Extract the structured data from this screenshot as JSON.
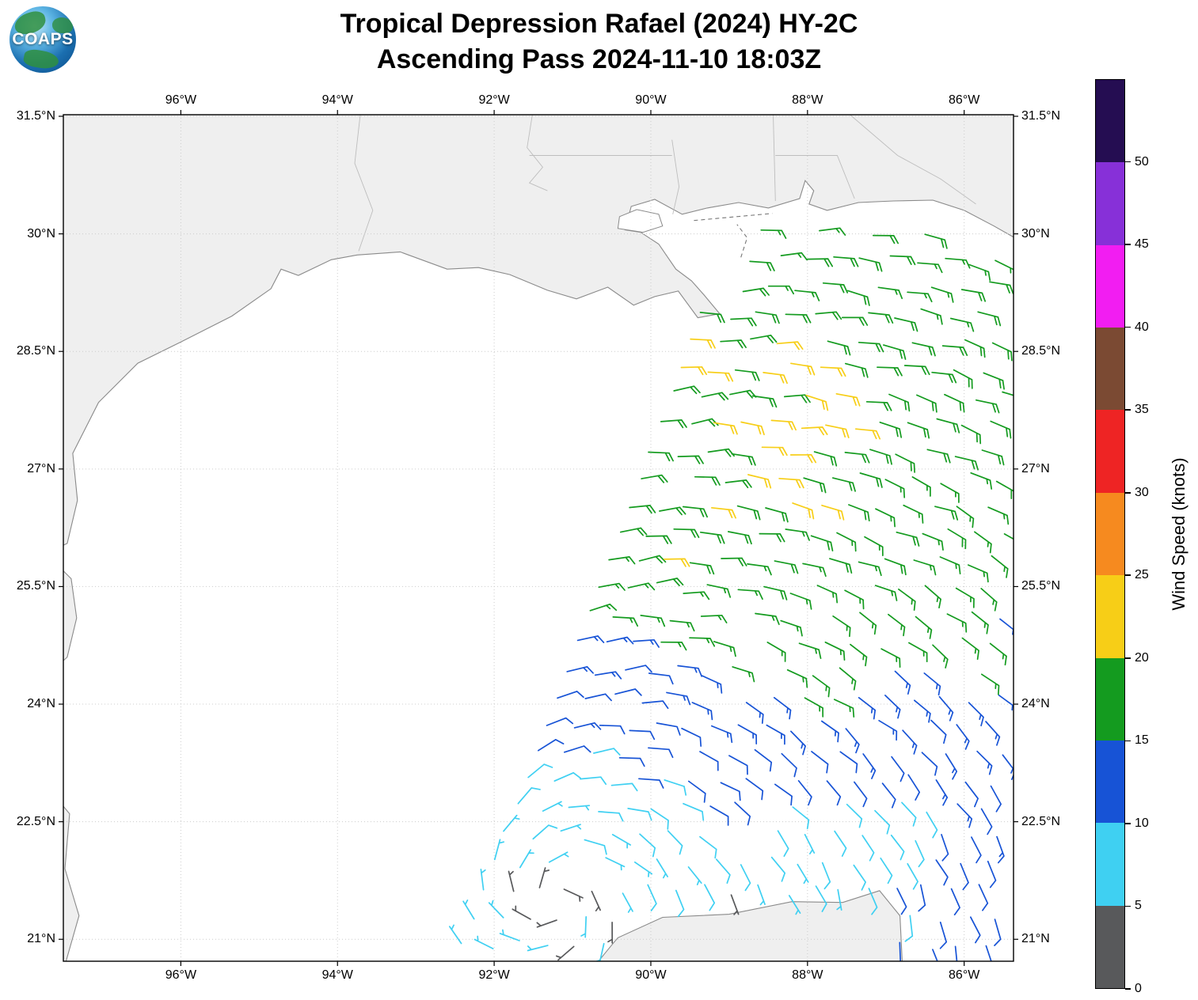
{
  "title": {
    "line1": "Tropical Depression Rafael (2024) HY-2C",
    "line2": "Ascending Pass 2024-11-10 18:03Z"
  },
  "logo": {
    "text": "COAPS"
  },
  "basemap": {
    "land_color": "#efefef",
    "coast_color": "#8a8a8a",
    "border_color": "#bdbdbd",
    "grid_color": "#cccccc",
    "land_polygons": [
      [
        [
          -98.0,
          25.8
        ],
        [
          -97.45,
          26.05
        ],
        [
          -97.32,
          26.6
        ],
        [
          -97.38,
          27.2
        ],
        [
          -97.05,
          27.85
        ],
        [
          -96.55,
          28.35
        ],
        [
          -96.0,
          28.62
        ],
        [
          -95.35,
          28.95
        ],
        [
          -94.85,
          29.3
        ],
        [
          -94.72,
          29.55
        ],
        [
          -94.5,
          29.47
        ],
        [
          -94.08,
          29.67
        ],
        [
          -93.75,
          29.73
        ],
        [
          -93.2,
          29.77
        ],
        [
          -92.6,
          29.55
        ],
        [
          -92.2,
          29.57
        ],
        [
          -91.8,
          29.48
        ],
        [
          -91.32,
          29.28
        ],
        [
          -90.95,
          29.17
        ],
        [
          -90.55,
          29.32
        ],
        [
          -90.22,
          29.09
        ],
        [
          -89.95,
          29.2
        ],
        [
          -89.65,
          29.27
        ],
        [
          -89.4,
          28.93
        ],
        [
          -89.12,
          28.98
        ],
        [
          -89.32,
          29.22
        ],
        [
          -89.48,
          29.4
        ],
        [
          -89.68,
          29.55
        ],
        [
          -89.9,
          29.87
        ],
        [
          -90.13,
          30.02
        ],
        [
          -90.33,
          30.05
        ],
        [
          -90.25,
          30.35
        ],
        [
          -89.95,
          30.44
        ],
        [
          -89.6,
          30.25
        ],
        [
          -89.28,
          30.33
        ],
        [
          -88.88,
          30.4
        ],
        [
          -88.5,
          30.33
        ],
        [
          -88.1,
          30.45
        ],
        [
          -88.03,
          30.68
        ],
        [
          -87.92,
          30.55
        ],
        [
          -87.98,
          30.38
        ],
        [
          -87.75,
          30.3
        ],
        [
          -87.35,
          30.4
        ],
        [
          -86.9,
          30.42
        ],
        [
          -86.4,
          30.43
        ],
        [
          -86.0,
          30.3
        ],
        [
          -85.62,
          30.1
        ],
        [
          -85.0,
          29.75
        ],
        [
          -85.0,
          32.0
        ],
        [
          -98.0,
          32.0
        ]
      ],
      [
        [
          -98.0,
          26.2
        ],
        [
          -97.4,
          25.6
        ],
        [
          -97.33,
          25.1
        ],
        [
          -97.45,
          24.6
        ],
        [
          -98.0,
          24.1
        ]
      ],
      [
        [
          -98.0,
          23.3
        ],
        [
          -97.42,
          22.6
        ],
        [
          -97.48,
          21.9
        ],
        [
          -97.3,
          21.3
        ],
        [
          -97.5,
          20.6
        ],
        [
          -98.0,
          20.6
        ]
      ],
      [
        [
          -90.85,
          20.5
        ],
        [
          -90.48,
          20.95
        ],
        [
          -90.42,
          21.02
        ],
        [
          -89.85,
          21.28
        ],
        [
          -89.0,
          21.32
        ],
        [
          -88.2,
          21.48
        ],
        [
          -87.55,
          21.47
        ],
        [
          -87.08,
          21.62
        ],
        [
          -86.82,
          21.3
        ],
        [
          -86.78,
          20.5
        ]
      ]
    ],
    "lakes": [
      [
        [
          -90.42,
          30.07
        ],
        [
          -90.1,
          30.02
        ],
        [
          -89.85,
          30.1
        ],
        [
          -89.9,
          30.25
        ],
        [
          -90.18,
          30.31
        ],
        [
          -90.4,
          30.22
        ]
      ]
    ],
    "borders": [
      [
        [
          -93.7,
          31.6
        ],
        [
          -93.78,
          30.9
        ],
        [
          -93.55,
          30.3
        ],
        [
          -93.73,
          29.78
        ]
      ],
      [
        [
          -91.5,
          31.6
        ],
        [
          -91.58,
          31.1
        ],
        [
          -91.38,
          30.85
        ],
        [
          -91.55,
          30.65
        ],
        [
          -91.32,
          30.55
        ]
      ],
      [
        [
          -88.44,
          31.6
        ],
        [
          -88.41,
          30.42
        ]
      ],
      [
        [
          -88.41,
          31.0
        ],
        [
          -87.62,
          31.0
        ],
        [
          -87.4,
          30.45
        ]
      ],
      [
        [
          -87.55,
          31.6
        ],
        [
          -86.85,
          31.0
        ],
        [
          -86.3,
          30.7
        ],
        [
          -85.85,
          30.38
        ]
      ],
      [
        [
          -89.73,
          31.2
        ],
        [
          -89.64,
          30.6
        ],
        [
          -89.72,
          30.25
        ]
      ],
      [
        [
          -91.55,
          31.0
        ],
        [
          -89.73,
          31.0
        ]
      ]
    ],
    "island_dashes": [
      [
        [
          -89.45,
          30.17
        ],
        [
          -88.45,
          30.26
        ]
      ],
      [
        [
          -88.85,
          29.7
        ],
        [
          -88.77,
          29.95
        ],
        [
          -88.9,
          30.12
        ]
      ]
    ]
  },
  "chart_data": {
    "type": "wind_barb_map",
    "storm": "Tropical Depression Rafael (2024)",
    "satellite": "HY-2C",
    "pass_type": "Ascending",
    "pass_time": "2024-11-10 18:03Z",
    "axes": {
      "lon_min": -97.5,
      "lon_max": -85.37,
      "lat_min": 20.72,
      "lat_max": 31.52,
      "lon_ticks": [
        -96,
        -94,
        -92,
        -90,
        -88,
        -86
      ],
      "lon_tick_labels": [
        "96°W",
        "94°W",
        "92°W",
        "90°W",
        "88°W",
        "86°W"
      ],
      "lat_ticks": [
        31.5,
        30,
        28.5,
        27,
        25.5,
        24,
        22.5,
        21
      ],
      "lat_tick_labels": [
        "31.5°N",
        "30°N",
        "28.5°N",
        "27°N",
        "25.5°N",
        "24°N",
        "22.5°N",
        "21°N"
      ],
      "grid": "dotted"
    },
    "colorbar": {
      "title": "Wind Speed (knots)",
      "ticks": [
        0,
        5,
        10,
        15,
        20,
        25,
        30,
        35,
        40,
        45,
        50
      ],
      "bin_edges_knots": [
        0,
        5,
        10,
        15,
        20,
        25,
        30,
        35,
        40,
        45,
        50,
        55
      ],
      "colors": [
        "#58595b",
        "#3fd0f2",
        "#1753d6",
        "#149b1f",
        "#f7ce17",
        "#f68a1f",
        "#ee2424",
        "#7b4a33",
        "#f21df2",
        "#8730d8",
        "#250d52"
      ]
    },
    "swath": {
      "lat_min": 20.9,
      "lat_max": 30.05,
      "west_edge_lon_at_21N": -92.35,
      "west_edge_slope": 0.38,
      "east_edge_lon": -85.48,
      "grid_spacing_deg": 0.35
    },
    "flow_model": {
      "type": "cyclonic_inflow",
      "center_lon": -91.2,
      "center_lat": 21.5,
      "tangential": 1.0,
      "inflow": 0.35
    },
    "speed_control_points_lon_lat_knots": [
      [
        -91.6,
        21.3,
        3
      ],
      [
        -91.0,
        21.5,
        3
      ],
      [
        -91.3,
        22.0,
        4
      ],
      [
        -90.6,
        21.2,
        4
      ],
      [
        -88.9,
        21.4,
        4
      ],
      [
        -88.2,
        21.5,
        5
      ],
      [
        -92.1,
        21.6,
        7
      ],
      [
        -91.9,
        22.5,
        8
      ],
      [
        -90.9,
        22.6,
        7
      ],
      [
        -90.2,
        22.0,
        6
      ],
      [
        -89.6,
        21.8,
        6
      ],
      [
        -87.5,
        21.7,
        7
      ],
      [
        -86.9,
        22.4,
        8
      ],
      [
        -90.6,
        23.0,
        9
      ],
      [
        -88.1,
        22.3,
        8
      ],
      [
        -90.7,
        23.7,
        12
      ],
      [
        -91.2,
        24.3,
        13
      ],
      [
        -90.1,
        23.4,
        11
      ],
      [
        -90.5,
        24.4,
        12
      ],
      [
        -86.2,
        21.6,
        12
      ],
      [
        -85.7,
        22.3,
        12
      ],
      [
        -86.5,
        23.0,
        12
      ],
      [
        -85.7,
        24.0,
        14
      ],
      [
        -88.0,
        23.0,
        10
      ],
      [
        -89.4,
        24.6,
        16
      ],
      [
        -88.6,
        25.4,
        17
      ],
      [
        -87.5,
        24.5,
        16
      ],
      [
        -86.3,
        25.0,
        17
      ],
      [
        -90.3,
        26.2,
        17
      ],
      [
        -85.8,
        26.5,
        18
      ],
      [
        -85.9,
        28.0,
        18
      ],
      [
        -86.2,
        29.3,
        17
      ],
      [
        -87.3,
        29.7,
        17
      ],
      [
        -88.6,
        29.6,
        17
      ],
      [
        -89.3,
        28.9,
        19
      ],
      [
        -89.85,
        27.2,
        18
      ],
      [
        -88.0,
        24.2,
        16
      ],
      [
        -88.6,
        27.4,
        22
      ],
      [
        -87.6,
        27.9,
        22
      ],
      [
        -89.3,
        26.6,
        21
      ],
      [
        -88.0,
        26.6,
        21
      ],
      [
        -86.9,
        27.3,
        19
      ],
      [
        -90.0,
        25.3,
        20
      ],
      [
        -89.7,
        25.9,
        21
      ],
      [
        -89.45,
        28.55,
        21
      ],
      [
        -87.0,
        28.6,
        20
      ],
      [
        -88.8,
        28.3,
        21
      ]
    ]
  }
}
